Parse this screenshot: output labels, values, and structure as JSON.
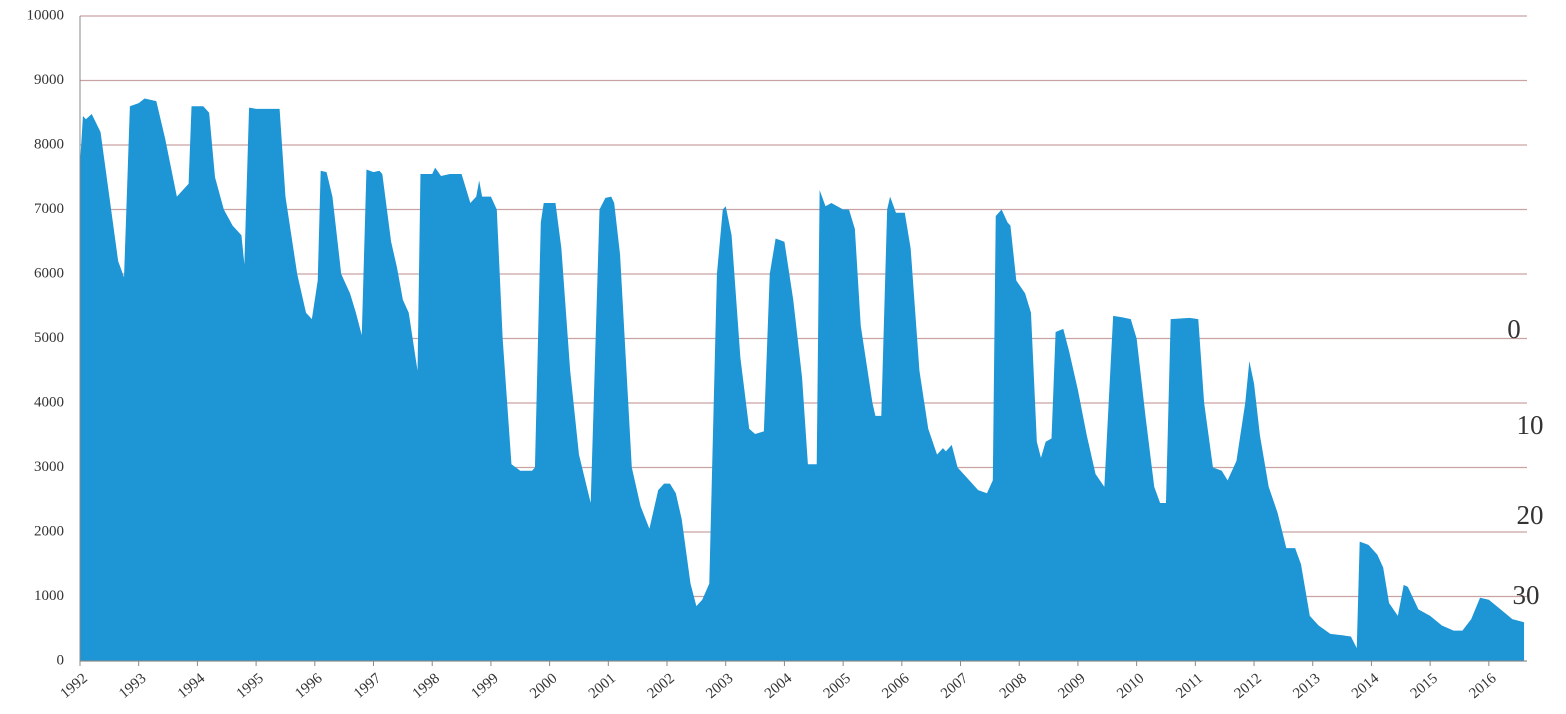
{
  "chart_data": {
    "type": "area",
    "color": "#1e95d5",
    "grid": true,
    "xlim": [
      1992,
      2016.65
    ],
    "ylim": [
      0,
      10000
    ],
    "xticks": [
      1992,
      1993,
      1994,
      1995,
      1996,
      1997,
      1998,
      1999,
      2000,
      2001,
      2002,
      2003,
      2004,
      2005,
      2006,
      2007,
      2008,
      2009,
      2010,
      2011,
      2012,
      2013,
      2014,
      2015,
      2016
    ],
    "yticks": [
      0,
      1000,
      2000,
      3000,
      4000,
      5000,
      6000,
      7000,
      8000,
      9000,
      10000
    ],
    "x": [
      1992.0,
      1992.05,
      1992.1,
      1992.2,
      1992.35,
      1992.5,
      1992.65,
      1992.75,
      1992.85,
      1993.0,
      1993.1,
      1993.3,
      1993.45,
      1993.65,
      1993.85,
      1993.9,
      1994.1,
      1994.2,
      1994.3,
      1994.45,
      1994.6,
      1994.75,
      1994.8,
      1994.88,
      1995.0,
      1995.4,
      1995.5,
      1995.7,
      1995.85,
      1995.95,
      1996.05,
      1996.1,
      1996.2,
      1996.3,
      1996.45,
      1996.6,
      1996.7,
      1996.8,
      1996.88,
      1997.0,
      1997.1,
      1997.15,
      1997.3,
      1997.4,
      1997.5,
      1997.6,
      1997.75,
      1997.8,
      1998.0,
      1998.05,
      1998.15,
      1998.3,
      1998.5,
      1998.65,
      1998.75,
      1998.8,
      1998.85,
      1999.0,
      1999.1,
      1999.2,
      1999.35,
      1999.5,
      1999.7,
      1999.75,
      1999.85,
      1999.9,
      2000.0,
      2000.1,
      2000.2,
      2000.35,
      2000.5,
      2000.7,
      2000.85,
      2000.95,
      2001.05,
      2001.1,
      2001.2,
      2001.4,
      2001.55,
      2001.7,
      2001.85,
      2001.95,
      2002.05,
      2002.15,
      2002.25,
      2002.4,
      2002.5,
      2002.6,
      2002.72,
      2002.85,
      2002.95,
      2003.0,
      2003.1,
      2003.25,
      2003.4,
      2003.5,
      2003.65,
      2003.75,
      2003.85,
      2004.0,
      2004.15,
      2004.3,
      2004.4,
      2004.55,
      2004.6,
      2004.7,
      2004.8,
      2005.0,
      2005.1,
      2005.2,
      2005.3,
      2005.5,
      2005.55,
      2005.65,
      2005.75,
      2005.8,
      2005.9,
      2006.05,
      2006.15,
      2006.3,
      2006.45,
      2006.6,
      2006.7,
      2006.75,
      2006.85,
      2006.95,
      2007.1,
      2007.3,
      2007.45,
      2007.55,
      2007.6,
      2007.7,
      2007.8,
      2007.85,
      2007.95,
      2008.1,
      2008.2,
      2008.3,
      2008.37,
      2008.45,
      2008.55,
      2008.62,
      2008.75,
      2008.85,
      2009.0,
      2009.15,
      2009.3,
      2009.45,
      2009.6,
      2009.75,
      2009.9,
      2010.0,
      2010.15,
      2010.3,
      2010.4,
      2010.5,
      2010.58,
      2010.9,
      2011.05,
      2011.15,
      2011.3,
      2011.45,
      2011.55,
      2011.7,
      2011.85,
      2011.92,
      2012.0,
      2012.1,
      2012.25,
      2012.4,
      2012.55,
      2012.7,
      2012.8,
      2012.95,
      2013.1,
      2013.3,
      2013.5,
      2013.65,
      2013.75,
      2013.8,
      2013.95,
      2014.1,
      2014.2,
      2014.3,
      2014.45,
      2014.55,
      2014.62,
      2014.8,
      2015.0,
      2015.2,
      2015.4,
      2015.55,
      2015.7,
      2015.85,
      2016.0,
      2016.2,
      2016.4,
      2016.6
    ],
    "values": [
      7700,
      8450,
      8400,
      8480,
      8200,
      7200,
      6200,
      5950,
      8600,
      8650,
      8720,
      8680,
      8100,
      7200,
      7400,
      8600,
      8600,
      8500,
      7500,
      7000,
      6750,
      6600,
      6150,
      8580,
      8560,
      8560,
      7200,
      6000,
      5400,
      5300,
      5900,
      7600,
      7580,
      7200,
      6000,
      5700,
      5400,
      5050,
      7620,
      7580,
      7600,
      7550,
      6500,
      6100,
      5600,
      5400,
      4500,
      7550,
      7550,
      7650,
      7520,
      7550,
      7550,
      7100,
      7200,
      7450,
      7200,
      7200,
      7000,
      5000,
      3050,
      2950,
      2950,
      3000,
      6800,
      7100,
      7100,
      7100,
      6400,
      4500,
      3200,
      2450,
      7000,
      7180,
      7200,
      7100,
      6300,
      3000,
      2400,
      2050,
      2650,
      2750,
      2750,
      2600,
      2200,
      1200,
      850,
      950,
      1200,
      6000,
      7000,
      7050,
      6600,
      4700,
      3600,
      3520,
      3560,
      6000,
      6550,
      6500,
      5600,
      4400,
      3050,
      3050,
      7300,
      7050,
      7100,
      7000,
      7000,
      6700,
      5200,
      4000,
      3800,
      3800,
      7000,
      7200,
      6950,
      6950,
      6400,
      4500,
      3600,
      3200,
      3300,
      3250,
      3350,
      3000,
      2850,
      2650,
      2600,
      2800,
      6900,
      7000,
      6800,
      6750,
      5900,
      5700,
      5400,
      3400,
      3150,
      3400,
      3450,
      5100,
      5150,
      4800,
      4200,
      3500,
      2900,
      2700,
      5350,
      5330,
      5300,
      5000,
      3800,
      2700,
      2450,
      2450,
      5300,
      5320,
      5300,
      4000,
      3000,
      2950,
      2800,
      3100,
      4000,
      4650,
      4300,
      3500,
      2700,
      2300,
      1750,
      1750,
      1500,
      700,
      550,
      420,
      400,
      380,
      200,
      1850,
      1800,
      1650,
      1450,
      900,
      700,
      1180,
      1150,
      800,
      700,
      550,
      470,
      470,
      650,
      980,
      950,
      800,
      650,
      600
    ]
  },
  "overlay_labels": [
    "0",
    "10",
    "20",
    "30"
  ]
}
